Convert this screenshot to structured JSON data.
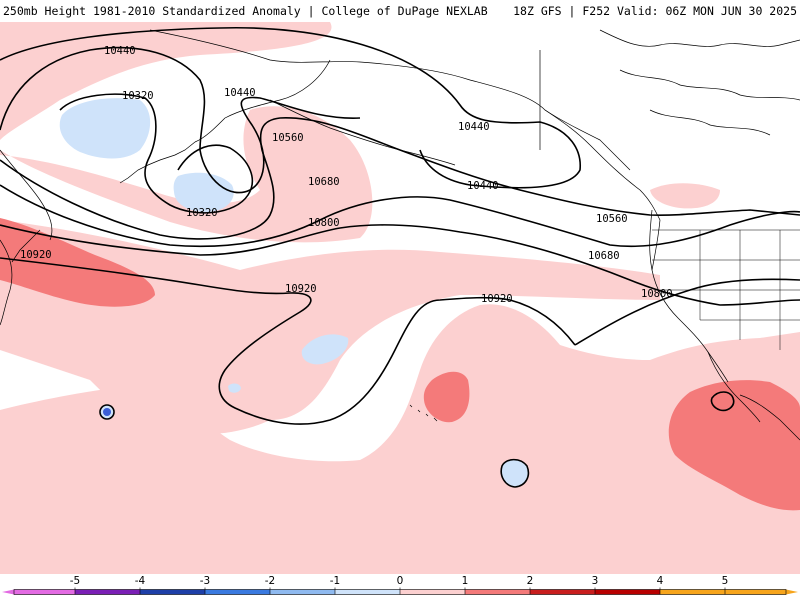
{
  "header": {
    "title_left": "250mb Height 1981-2010 Standardized Anomaly | College of DuPage NEXLAB",
    "title_right": "18Z GFS | F252 Valid: 06Z MON JUN 30 2025"
  },
  "contours": {
    "labels": [
      "10440",
      "10320",
      "10440",
      "10320",
      "10560",
      "10680",
      "10800",
      "10920",
      "10920",
      "10440",
      "10440",
      "10560",
      "10680",
      "10800",
      "10920"
    ]
  },
  "colorbar": {
    "ticks": [
      "-5",
      "-4",
      "-3",
      "-2",
      "-1",
      "0",
      "1",
      "2",
      "3",
      "4",
      "5"
    ],
    "colors": {
      "neg5": "#e36be3",
      "neg4": "#7a1fb5",
      "neg3": "#1e3fa8",
      "neg2": "#3a7ae0",
      "neg1": "#8fbaf0",
      "neg0": "#cfe3fa",
      "zero": "#ffffff",
      "pos1": "#fcd0d0",
      "pos2": "#f47a7a",
      "pos3": "#c81e1e",
      "pos4": "#b80000",
      "pos5": "#f7a51c"
    }
  },
  "fills": {
    "pos_light": "#fcd0d0",
    "pos_med": "#f47a7a",
    "neg_light": "#cfe3fa",
    "neg_strong": "#3a5ed6",
    "land_line": "#000000"
  }
}
